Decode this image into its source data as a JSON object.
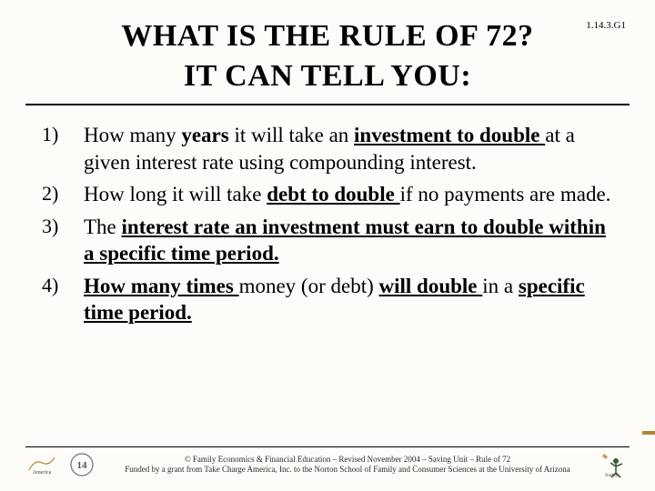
{
  "code": "1.14.3.G1",
  "title_line1": "What is the rule of 72?",
  "title_line2": "It can tell you:",
  "items": [
    {
      "num": "1)",
      "segments": [
        {
          "t": "How many ",
          "b": false,
          "u": false
        },
        {
          "t": "years",
          "b": true,
          "u": false
        },
        {
          "t": " it will take an ",
          "b": false,
          "u": false
        },
        {
          "t": "investment to double ",
          "b": true,
          "u": true
        },
        {
          "t": "at a given interest rate using compounding interest.",
          "b": false,
          "u": false
        }
      ]
    },
    {
      "num": "2)",
      "segments": [
        {
          "t": "How long it will take ",
          "b": false,
          "u": false
        },
        {
          "t": "debt to double ",
          "b": true,
          "u": true
        },
        {
          "t": "if no payments are made.",
          "b": false,
          "u": false
        }
      ]
    },
    {
      "num": "3)",
      "segments": [
        {
          "t": "The ",
          "b": false,
          "u": false
        },
        {
          "t": "interest rate an investment must earn to double within a specific time period.",
          "b": true,
          "u": true
        }
      ]
    },
    {
      "num": "4)",
      "segments": [
        {
          "t": "How many times ",
          "b": true,
          "u": true
        },
        {
          "t": "money (or debt) ",
          "b": false,
          "u": false
        },
        {
          "t": "will double ",
          "b": true,
          "u": true
        },
        {
          "t": "in a ",
          "b": false,
          "u": false
        },
        {
          "t": "specific time period.",
          "b": true,
          "u": true
        }
      ]
    }
  ],
  "credit_line1": "© Family Economics & Financial Education – Revised November 2004 – Saving Unit – Rule of 72",
  "credit_line2": "Funded by a grant from Take Charge America, Inc. to the Norton School of Family and Consumer Sciences at the University of Arizona",
  "colors": {
    "bg": "#fdfcf8",
    "text": "#000000",
    "accent": "#b08830"
  }
}
